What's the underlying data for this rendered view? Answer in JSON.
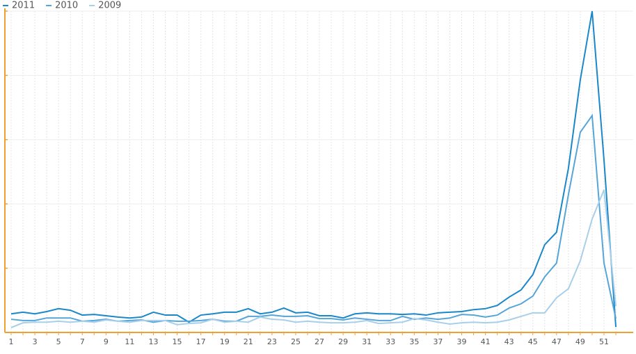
{
  "chart_data": {
    "type": "line",
    "categories": [
      1,
      null,
      3,
      null,
      5,
      null,
      7,
      null,
      9,
      null,
      11,
      null,
      13,
      null,
      15,
      null,
      17,
      null,
      19,
      null,
      21,
      null,
      23,
      null,
      25,
      null,
      27,
      null,
      29,
      null,
      31,
      null,
      33,
      null,
      35,
      null,
      37,
      null,
      39,
      null,
      41,
      null,
      43,
      null,
      45,
      null,
      47,
      null,
      49,
      null,
      51,
      null
    ],
    "series": [
      {
        "name": "2011",
        "color": "#1a87c9",
        "values": [
          5.8,
          6.3,
          5.8,
          6.5,
          7.4,
          6.9,
          5.4,
          5.6,
          5.2,
          4.8,
          4.5,
          4.8,
          6.3,
          5.4,
          5.4,
          3.2,
          5.4,
          5.8,
          6.3,
          6.3,
          7.4,
          5.8,
          6.3,
          7.6,
          6.1,
          6.3,
          5.2,
          5.2,
          4.5,
          5.8,
          6.1,
          5.8,
          5.8,
          5.6,
          5.8,
          5.4,
          6.1,
          6.3,
          6.5,
          7.1,
          7.4,
          8.4,
          11.0,
          13.2,
          18.0,
          27.3,
          31.2,
          51.1,
          78.6,
          100,
          53.7,
          1.7
        ]
      },
      {
        "name": "2010",
        "color": "#55a5d9",
        "values": [
          4.1,
          3.7,
          3.7,
          4.5,
          4.5,
          4.5,
          3.5,
          3.7,
          4.1,
          3.5,
          3.7,
          3.9,
          3.2,
          3.7,
          3.5,
          3.5,
          3.7,
          4.1,
          3.5,
          3.5,
          5.0,
          5.0,
          5.4,
          5.0,
          5.0,
          5.2,
          4.3,
          4.3,
          3.9,
          4.5,
          4.1,
          3.7,
          3.7,
          5.0,
          4.1,
          4.5,
          4.1,
          4.5,
          5.6,
          5.4,
          4.8,
          5.4,
          7.6,
          8.9,
          11.3,
          17.3,
          21.6,
          42.9,
          62.3,
          67.5,
          21.6,
          4.3
        ]
      },
      {
        "name": "2009",
        "color": "#a8cfea",
        "values": [
          1.5,
          3.0,
          3.2,
          3.2,
          3.5,
          3.2,
          3.5,
          3.2,
          3.9,
          3.5,
          3.2,
          3.7,
          3.7,
          3.7,
          2.4,
          2.8,
          3.0,
          4.1,
          3.2,
          3.5,
          3.2,
          4.8,
          4.1,
          3.9,
          3.2,
          3.5,
          3.2,
          3.0,
          3.0,
          3.2,
          3.7,
          2.8,
          3.0,
          3.2,
          4.3,
          3.9,
          3.2,
          2.6,
          3.0,
          3.2,
          3.0,
          3.2,
          3.9,
          5.0,
          6.1,
          6.1,
          10.8,
          13.6,
          22.3,
          35.3,
          44.4,
          8.2
        ]
      }
    ],
    "ylim": [
      0,
      100
    ],
    "yticks": [
      0,
      20,
      40,
      60,
      80,
      100
    ],
    "grid": true
  }
}
